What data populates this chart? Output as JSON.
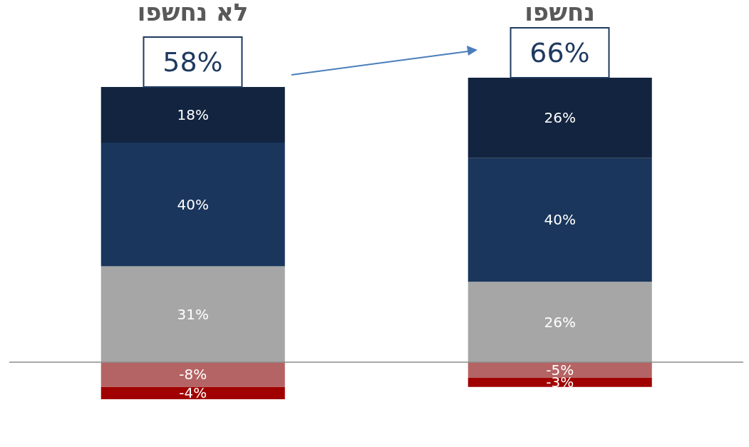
{
  "chart_data": {
    "type": "bar",
    "stacked": true,
    "categories": [
      "לא נחשפו",
      "נחשפו"
    ],
    "legend": false,
    "grid": false,
    "tick_labels": "x",
    "series": [
      {
        "color": "#a6a6a6",
        "values": [
          31,
          26
        ],
        "value_labels": [
          "31%",
          "26%"
        ]
      },
      {
        "color": "#1a365c",
        "values": [
          40,
          40
        ],
        "value_labels": [
          "40%",
          "40%"
        ]
      },
      {
        "color": "#12243f",
        "values": [
          18,
          26
        ],
        "value_labels": [
          "18%",
          "26%"
        ]
      },
      {
        "color": "#b46464",
        "values": [
          -8,
          -5
        ],
        "value_labels": [
          "-8%",
          "-5%"
        ]
      },
      {
        "color": "#a00000",
        "values": [
          -4,
          -3
        ],
        "value_labels": [
          "-4%",
          "-3%"
        ]
      }
    ],
    "annotations": [
      "58%",
      "66%"
    ]
  }
}
